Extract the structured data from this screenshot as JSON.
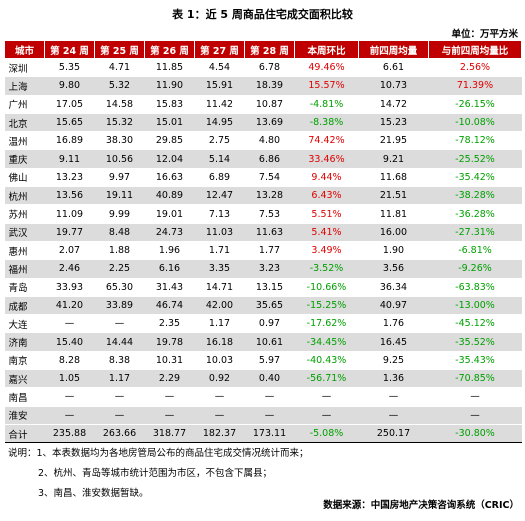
{
  "title": "表 1：近 5 周商品住宅成交面积比较",
  "unit": "单位：万平方米",
  "headers": [
    "城市",
    "第 24 周",
    "第 25 周",
    "第 26 周",
    "第 27 周",
    "第 28 周",
    "本周环比",
    "前四周均量",
    "与前四周均量比"
  ],
  "rows": [
    {
      "c": [
        "深圳",
        "5.35",
        "4.71",
        "11.85",
        "4.54",
        "6.78",
        "49.46%",
        "6.61",
        "2.56%"
      ],
      "d1": "up",
      "d2": "up"
    },
    {
      "c": [
        "上海",
        "9.80",
        "5.32",
        "11.90",
        "15.91",
        "18.39",
        "15.57%",
        "10.73",
        "71.39%"
      ],
      "d1": "up",
      "d2": "up"
    },
    {
      "c": [
        "广州",
        "17.05",
        "14.58",
        "15.83",
        "11.42",
        "10.87",
        "-4.81%",
        "14.72",
        "-26.15%"
      ],
      "d1": "down",
      "d2": "down"
    },
    {
      "c": [
        "北京",
        "15.65",
        "15.32",
        "15.01",
        "14.95",
        "13.69",
        "-8.38%",
        "15.23",
        "-10.08%"
      ],
      "d1": "down",
      "d2": "down"
    },
    {
      "c": [
        "温州",
        "16.89",
        "38.30",
        "29.85",
        "2.75",
        "4.80",
        "74.42%",
        "21.95",
        "-78.12%"
      ],
      "d1": "up",
      "d2": "down"
    },
    {
      "c": [
        "重庆",
        "9.11",
        "10.56",
        "12.04",
        "5.14",
        "6.86",
        "33.46%",
        "9.21",
        "-25.52%"
      ],
      "d1": "up",
      "d2": "down"
    },
    {
      "c": [
        "佛山",
        "13.23",
        "9.97",
        "16.63",
        "6.89",
        "7.54",
        "9.44%",
        "11.68",
        "-35.42%"
      ],
      "d1": "up",
      "d2": "down"
    },
    {
      "c": [
        "杭州",
        "13.56",
        "19.11",
        "40.89",
        "12.47",
        "13.28",
        "6.43%",
        "21.51",
        "-38.28%"
      ],
      "d1": "up",
      "d2": "down"
    },
    {
      "c": [
        "苏州",
        "11.09",
        "9.99",
        "19.01",
        "7.13",
        "7.53",
        "5.51%",
        "11.81",
        "-36.28%"
      ],
      "d1": "up",
      "d2": "down"
    },
    {
      "c": [
        "武汉",
        "19.77",
        "8.48",
        "24.73",
        "11.03",
        "11.63",
        "5.41%",
        "16.00",
        "-27.31%"
      ],
      "d1": "up",
      "d2": "down"
    },
    {
      "c": [
        "惠州",
        "2.07",
        "1.88",
        "1.96",
        "1.71",
        "1.77",
        "3.49%",
        "1.90",
        "-6.81%"
      ],
      "d1": "up",
      "d2": "down"
    },
    {
      "c": [
        "福州",
        "2.46",
        "2.25",
        "6.16",
        "3.35",
        "3.23",
        "-3.52%",
        "3.56",
        "-9.26%"
      ],
      "d1": "down",
      "d2": "down"
    },
    {
      "c": [
        "青岛",
        "33.93",
        "65.30",
        "31.43",
        "14.71",
        "13.15",
        "-10.66%",
        "36.34",
        "-63.83%"
      ],
      "d1": "down",
      "d2": "down"
    },
    {
      "c": [
        "成都",
        "41.20",
        "33.89",
        "46.74",
        "42.00",
        "35.65",
        "-15.25%",
        "40.97",
        "-13.00%"
      ],
      "d1": "down",
      "d2": "down"
    },
    {
      "c": [
        "大连",
        "—",
        "—",
        "2.35",
        "1.17",
        "0.97",
        "-17.62%",
        "1.76",
        "-45.12%"
      ],
      "d1": "down",
      "d2": "down"
    },
    {
      "c": [
        "济南",
        "15.40",
        "14.44",
        "19.78",
        "16.18",
        "10.61",
        "-34.45%",
        "16.45",
        "-35.52%"
      ],
      "d1": "down",
      "d2": "down"
    },
    {
      "c": [
        "南京",
        "8.28",
        "8.38",
        "10.31",
        "10.03",
        "5.97",
        "-40.43%",
        "9.25",
        "-35.43%"
      ],
      "d1": "down",
      "d2": "down"
    },
    {
      "c": [
        "嘉兴",
        "1.05",
        "1.17",
        "2.29",
        "0.92",
        "0.40",
        "-56.71%",
        "1.36",
        "-70.85%"
      ],
      "d1": "down",
      "d2": "down"
    },
    {
      "c": [
        "南昌",
        "—",
        "—",
        "—",
        "—",
        "—",
        "—",
        "—",
        "—"
      ],
      "d1": "",
      "d2": ""
    },
    {
      "c": [
        "淮安",
        "—",
        "—",
        "—",
        "—",
        "—",
        "—",
        "—",
        "—"
      ],
      "d1": "",
      "d2": ""
    }
  ],
  "total": {
    "c": [
      "合计",
      "235.88",
      "263.66",
      "318.77",
      "182.37",
      "173.11",
      "-5.08%",
      "250.17",
      "-30.80%"
    ],
    "d1": "down",
    "d2": "down"
  },
  "notes": [
    "说明：1、本表数据均为各地房管局公布的商品住宅成交情况统计而来；",
    "2、杭州、青岛等城市统计范围为市区，不包含下属县；",
    "3、南昌、淮安数据暂缺。"
  ],
  "source": "数据来源：中国房地产决策咨询系统（CRIC）",
  "colors": {
    "header_bg": "#c00000",
    "up": "#e00000",
    "down": "#00a000",
    "stripe": "#dcdcdc"
  }
}
